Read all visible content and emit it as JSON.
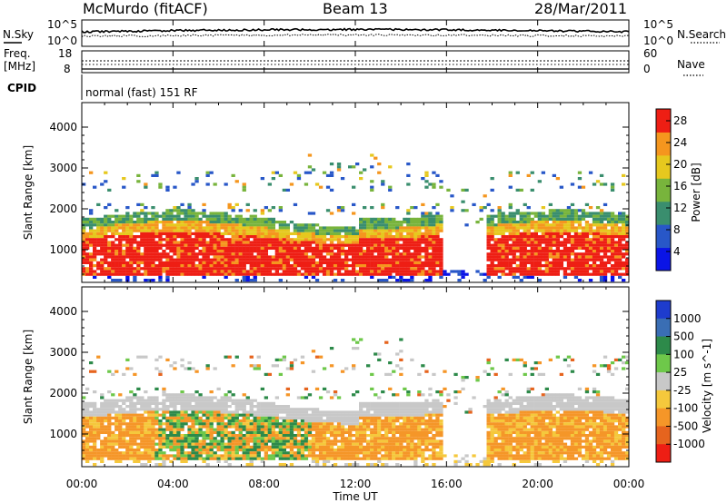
{
  "header": {
    "station": "McMurdo (fitACF)",
    "beam": "Beam 13",
    "date": "28/Mar/2011"
  },
  "noise_panel": {
    "left_label": "N.Sky",
    "right_label": "N.Search",
    "left_ticks": [
      "10^5",
      "10^0"
    ],
    "right_ticks": [
      "10^5",
      "10^0"
    ]
  },
  "freq_panel": {
    "left_label_line1": "Freq.",
    "left_label_line2": "[MHz]",
    "left_ticks": [
      "18",
      "8"
    ],
    "right_label": "Nave",
    "right_ticks": [
      "60",
      "0"
    ]
  },
  "cpid": {
    "label": "CPID",
    "value": "normal (fast) 151 RF"
  },
  "chart_data": [
    {
      "type": "heatmap",
      "name": "power",
      "ylabel": "Slant Range [km]",
      "yticks": [
        "1000",
        "2000",
        "3000",
        "4000"
      ],
      "ylim": [
        200,
        4600
      ],
      "colorbar_label": "Power [dB]",
      "colorbar_ticks": [
        "4",
        "8",
        "12",
        "16",
        "20",
        "24",
        "28"
      ],
      "colorbar_colors": [
        "#0a14e6",
        "#2857c8",
        "#3a8e6e",
        "#78b43c",
        "#e6c81e",
        "#f5961e",
        "#ee1e14"
      ]
    },
    {
      "type": "heatmap",
      "name": "velocity",
      "ylabel": "Slant Range [km]",
      "yticks": [
        "1000",
        "2000",
        "3000",
        "4000"
      ],
      "ylim": [
        200,
        4600
      ],
      "colorbar_label": "Velocity [m s^-1]",
      "colorbar_ticks": [
        "1000",
        "500",
        "100",
        "25",
        "-25",
        "-100",
        "-500",
        "-1000"
      ],
      "colorbar_colors": [
        "#1e3ccd",
        "#3a6eb4",
        "#2d8a4a",
        "#6ec84a",
        "#c8c8c8",
        "#f5c83c",
        "#f59628",
        "#e6641e",
        "#ee1e14"
      ]
    }
  ],
  "xaxis": {
    "label": "Time UT",
    "ticks": [
      "00:00",
      "04:00",
      "08:00",
      "12:00",
      "16:00",
      "20:00",
      "00:00"
    ]
  }
}
